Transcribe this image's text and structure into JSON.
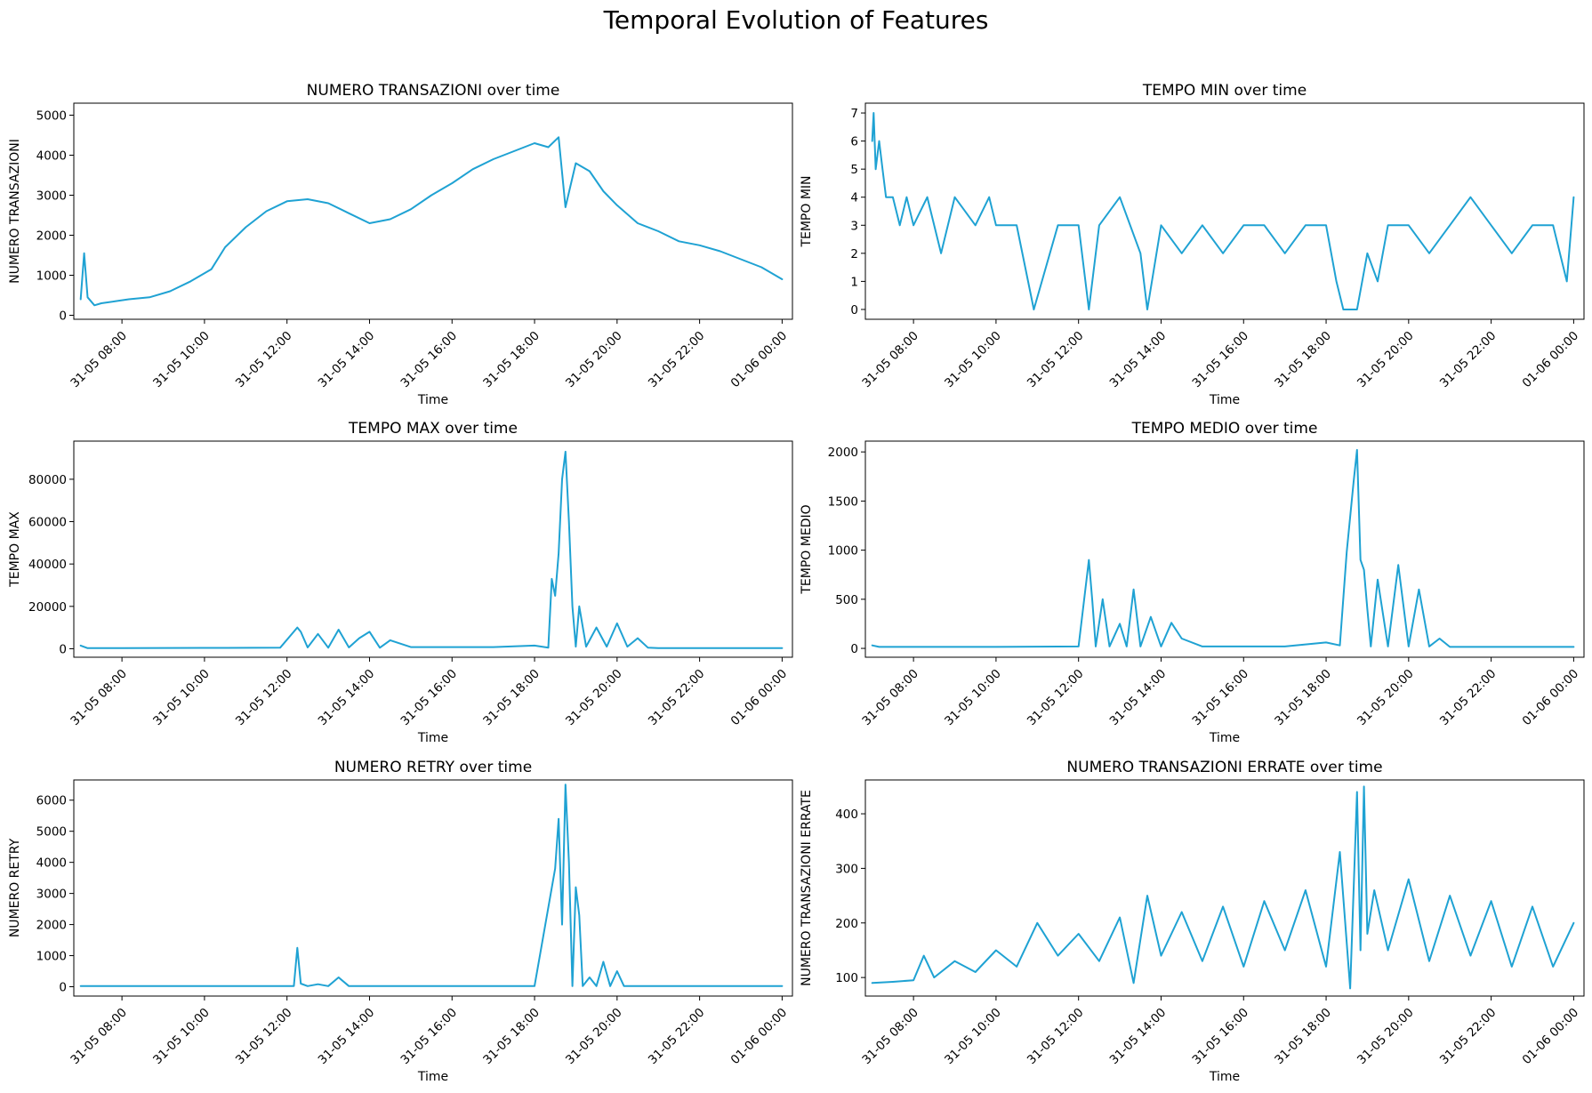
{
  "figure": {
    "title": "Temporal Evolution of Features"
  },
  "style": {
    "line_color": "#1fa2d3"
  },
  "chart_data": [
    {
      "type": "line",
      "title": "NUMERO TRANSAZIONI over time",
      "xlabel": "Time",
      "ylabel": "NUMERO TRANSAZIONI",
      "xlim": [
        "31-05 06:50",
        "01-06 00:15"
      ],
      "ylim": [
        -100,
        5300
      ],
      "x_ticks": [
        "31-05 08:00",
        "31-05 10:00",
        "31-05 12:00",
        "31-05 14:00",
        "31-05 16:00",
        "31-05 18:00",
        "31-05 20:00",
        "31-05 22:00",
        "01-06 00:00"
      ],
      "y_ticks": [
        "0",
        "1000",
        "2000",
        "3000",
        "4000",
        "5000"
      ],
      "y_tick_values": [
        0,
        1000,
        2000,
        3000,
        4000,
        5000
      ],
      "grid": false,
      "series": [
        {
          "x": [
            "31-05 07:00",
            "31-05 07:05",
            "31-05 07:10",
            "31-05 07:20",
            "31-05 07:30",
            "31-05 07:50",
            "31-05 08:10",
            "31-05 08:40",
            "31-05 09:10",
            "31-05 09:40",
            "31-05 10:10",
            "31-05 10:30",
            "31-05 11:00",
            "31-05 11:30",
            "31-05 12:00",
            "31-05 12:30",
            "31-05 13:00",
            "31-05 13:30",
            "31-05 14:00",
            "31-05 14:30",
            "31-05 15:00",
            "31-05 15:30",
            "31-05 16:00",
            "31-05 16:30",
            "31-05 17:00",
            "31-05 17:30",
            "31-05 18:00",
            "31-05 18:20",
            "31-05 18:35",
            "31-05 18:45",
            "31-05 19:00",
            "31-05 19:20",
            "31-05 19:40",
            "31-05 20:00",
            "31-05 20:30",
            "31-05 21:00",
            "31-05 21:30",
            "31-05 22:00",
            "31-05 22:30",
            "31-05 23:00",
            "31-05 23:30",
            "01-06 00:00"
          ],
          "y": [
            400,
            1550,
            450,
            250,
            300,
            350,
            400,
            450,
            600,
            850,
            1150,
            1700,
            2200,
            2600,
            2850,
            2900,
            2800,
            2550,
            2300,
            2400,
            2650,
            3000,
            3300,
            3650,
            3900,
            4100,
            4300,
            4200,
            4450,
            2700,
            3800,
            3600,
            3100,
            2750,
            2300,
            2100,
            1850,
            1750,
            1600,
            1400,
            1200,
            900
          ]
        }
      ]
    },
    {
      "type": "line",
      "title": "TEMPO MIN over time",
      "xlabel": "Time",
      "ylabel": "TEMPO MIN",
      "xlim": [
        "31-05 06:50",
        "01-06 00:15"
      ],
      "ylim": [
        -0.35,
        7.35
      ],
      "x_ticks": [
        "31-05 08:00",
        "31-05 10:00",
        "31-05 12:00",
        "31-05 14:00",
        "31-05 16:00",
        "31-05 18:00",
        "31-05 20:00",
        "31-05 22:00",
        "01-06 00:00"
      ],
      "y_ticks": [
        "0",
        "1",
        "2",
        "3",
        "4",
        "5",
        "6",
        "7"
      ],
      "y_tick_values": [
        0,
        1,
        2,
        3,
        4,
        5,
        6,
        7
      ],
      "grid": false,
      "series": [
        {
          "x": [
            "31-05 07:00",
            "31-05 07:02",
            "31-05 07:05",
            "31-05 07:10",
            "31-05 07:15",
            "31-05 07:20",
            "31-05 07:30",
            "31-05 07:40",
            "31-05 07:50",
            "31-05 08:00",
            "31-05 08:20",
            "31-05 08:40",
            "31-05 09:00",
            "31-05 09:30",
            "31-05 09:50",
            "31-05 10:00",
            "31-05 10:30",
            "31-05 10:55",
            "31-05 11:30",
            "31-05 12:00",
            "31-05 12:15",
            "31-05 12:30",
            "31-05 13:00",
            "31-05 13:30",
            "31-05 13:40",
            "31-05 14:00",
            "31-05 14:30",
            "31-05 15:00",
            "31-05 15:30",
            "31-05 16:00",
            "31-05 16:30",
            "31-05 17:00",
            "31-05 17:30",
            "31-05 18:00",
            "31-05 18:15",
            "31-05 18:25",
            "31-05 18:45",
            "31-05 19:00",
            "31-05 19:15",
            "31-05 19:30",
            "31-05 20:00",
            "31-05 20:30",
            "31-05 21:00",
            "31-05 21:30",
            "31-05 22:00",
            "31-05 22:30",
            "31-05 23:00",
            "31-05 23:30",
            "31-05 23:50",
            "01-06 00:00"
          ],
          "y": [
            6,
            7,
            5,
            6,
            5,
            4,
            4,
            3,
            4,
            3,
            4,
            2,
            4,
            3,
            4,
            3,
            3,
            0,
            3,
            3,
            0,
            3,
            4,
            2,
            0,
            3,
            2,
            3,
            2,
            3,
            3,
            2,
            3,
            3,
            1,
            0,
            0,
            2,
            1,
            3,
            3,
            2,
            3,
            4,
            3,
            2,
            3,
            3,
            1,
            4
          ]
        }
      ]
    },
    {
      "type": "line",
      "title": "TEMPO MAX over time",
      "xlabel": "Time",
      "ylabel": "TEMPO MAX",
      "xlim": [
        "31-05 06:50",
        "01-06 00:15"
      ],
      "ylim": [
        -4000,
        98000
      ],
      "x_ticks": [
        "31-05 08:00",
        "31-05 10:00",
        "31-05 12:00",
        "31-05 14:00",
        "31-05 16:00",
        "31-05 18:00",
        "31-05 20:00",
        "31-05 22:00",
        "01-06 00:00"
      ],
      "y_ticks": [
        "0",
        "20000",
        "40000",
        "60000",
        "80000"
      ],
      "y_tick_values": [
        0,
        20000,
        40000,
        60000,
        80000
      ],
      "grid": false,
      "series": [
        {
          "x": [
            "31-05 07:00",
            "31-05 07:10",
            "31-05 08:00",
            "31-05 10:00",
            "31-05 11:50",
            "31-05 12:15",
            "31-05 12:20",
            "31-05 12:30",
            "31-05 12:45",
            "31-05 13:00",
            "31-05 13:15",
            "31-05 13:30",
            "31-05 13:45",
            "31-05 14:00",
            "31-05 14:15",
            "31-05 14:30",
            "31-05 15:00",
            "31-05 16:00",
            "31-05 17:00",
            "31-05 18:00",
            "31-05 18:20",
            "31-05 18:25",
            "31-05 18:30",
            "31-05 18:35",
            "31-05 18:40",
            "31-05 18:45",
            "31-05 18:50",
            "31-05 18:55",
            "31-05 19:00",
            "31-05 19:05",
            "31-05 19:15",
            "31-05 19:30",
            "31-05 19:45",
            "31-05 20:00",
            "31-05 20:15",
            "31-05 20:30",
            "31-05 20:45",
            "31-05 21:00",
            "31-05 22:00",
            "01-06 00:00"
          ],
          "y": [
            1500,
            300,
            300,
            400,
            500,
            10000,
            8000,
            600,
            7000,
            500,
            9000,
            600,
            5000,
            8000,
            500,
            4000,
            800,
            800,
            800,
            1500,
            500,
            33000,
            25000,
            45000,
            80000,
            93000,
            60000,
            20000,
            1000,
            20000,
            1000,
            10000,
            1000,
            12000,
            1000,
            5000,
            500,
            300,
            300,
            300
          ]
        }
      ]
    },
    {
      "type": "line",
      "title": "TEMPO MEDIO over time",
      "xlabel": "Time",
      "ylabel": "TEMPO MEDIO",
      "xlim": [
        "31-05 06:50",
        "01-06 00:15"
      ],
      "ylim": [
        -90,
        2110
      ],
      "x_ticks": [
        "31-05 08:00",
        "31-05 10:00",
        "31-05 12:00",
        "31-05 14:00",
        "31-05 16:00",
        "31-05 18:00",
        "31-05 20:00",
        "31-05 22:00",
        "01-06 00:00"
      ],
      "y_ticks": [
        "0",
        "500",
        "1000",
        "1500",
        "2000"
      ],
      "y_tick_values": [
        0,
        500,
        1000,
        1500,
        2000
      ],
      "grid": false,
      "series": [
        {
          "x": [
            "31-05 07:00",
            "31-05 07:10",
            "31-05 08:00",
            "31-05 10:00",
            "31-05 12:00",
            "31-05 12:15",
            "31-05 12:20",
            "31-05 12:25",
            "31-05 12:35",
            "31-05 12:45",
            "31-05 13:00",
            "31-05 13:10",
            "31-05 13:20",
            "31-05 13:30",
            "31-05 13:45",
            "31-05 14:00",
            "31-05 14:15",
            "31-05 14:30",
            "31-05 15:00",
            "31-05 16:00",
            "31-05 17:00",
            "31-05 18:00",
            "31-05 18:20",
            "31-05 18:30",
            "31-05 18:40",
            "31-05 18:45",
            "31-05 18:50",
            "31-05 18:55",
            "31-05 19:00",
            "31-05 19:05",
            "31-05 19:15",
            "31-05 19:30",
            "31-05 19:45",
            "31-05 20:00",
            "31-05 20:15",
            "31-05 20:30",
            "31-05 20:45",
            "31-05 21:00",
            "31-05 22:00",
            "01-06 00:00"
          ],
          "y": [
            30,
            15,
            15,
            15,
            20,
            900,
            480,
            20,
            500,
            20,
            250,
            20,
            600,
            20,
            320,
            20,
            260,
            100,
            20,
            20,
            20,
            60,
            30,
            980,
            1700,
            2020,
            900,
            800,
            400,
            20,
            700,
            20,
            850,
            20,
            600,
            20,
            100,
            15,
            15,
            15
          ]
        }
      ]
    },
    {
      "type": "line",
      "title": "NUMERO RETRY over time",
      "xlabel": "Time",
      "ylabel": "NUMERO RETRY",
      "xlim": [
        "31-05 06:50",
        "01-06 00:15"
      ],
      "ylim": [
        -300,
        6650
      ],
      "x_ticks": [
        "31-05 08:00",
        "31-05 10:00",
        "31-05 12:00",
        "31-05 14:00",
        "31-05 16:00",
        "31-05 18:00",
        "31-05 20:00",
        "31-05 22:00",
        "01-06 00:00"
      ],
      "y_ticks": [
        "0",
        "1000",
        "2000",
        "3000",
        "4000",
        "5000",
        "6000"
      ],
      "y_tick_values": [
        0,
        1000,
        2000,
        3000,
        4000,
        5000,
        6000
      ],
      "grid": false,
      "series": [
        {
          "x": [
            "31-05 07:00",
            "31-05 08:00",
            "31-05 10:00",
            "31-05 12:10",
            "31-05 12:15",
            "31-05 12:20",
            "31-05 12:30",
            "31-05 12:45",
            "31-05 13:00",
            "31-05 13:15",
            "31-05 13:30",
            "31-05 14:00",
            "31-05 16:00",
            "31-05 18:00",
            "31-05 18:30",
            "31-05 18:35",
            "31-05 18:40",
            "31-05 18:45",
            "31-05 18:50",
            "31-05 18:55",
            "31-05 19:00",
            "31-05 19:05",
            "31-05 19:10",
            "31-05 19:20",
            "31-05 19:30",
            "31-05 19:40",
            "31-05 19:50",
            "31-05 20:00",
            "31-05 20:10",
            "31-05 21:00",
            "31-05 22:00",
            "01-06 00:00"
          ],
          "y": [
            20,
            20,
            20,
            20,
            1250,
            100,
            20,
            80,
            20,
            300,
            20,
            20,
            20,
            20,
            3800,
            5400,
            2000,
            6500,
            4000,
            20,
            3200,
            2300,
            20,
            300,
            20,
            800,
            20,
            500,
            20,
            20,
            20,
            20
          ]
        }
      ]
    },
    {
      "type": "line",
      "title": "NUMERO  TRANSAZIONI ERRATE over time",
      "xlabel": "Time",
      "ylabel": "NUMERO  TRANSAZIONI ERRATE",
      "xlim": [
        "31-05 06:50",
        "01-06 00:15"
      ],
      "ylim": [
        66,
        462
      ],
      "x_ticks": [
        "31-05 08:00",
        "31-05 10:00",
        "31-05 12:00",
        "31-05 14:00",
        "31-05 16:00",
        "31-05 18:00",
        "31-05 20:00",
        "31-05 22:00",
        "01-06 00:00"
      ],
      "y_ticks": [
        "100",
        "200",
        "300",
        "400"
      ],
      "y_tick_values": [
        100,
        200,
        300,
        400
      ],
      "grid": false,
      "series": [
        {
          "x": [
            "31-05 07:00",
            "31-05 07:30",
            "31-05 08:00",
            "31-05 08:15",
            "31-05 08:30",
            "31-05 09:00",
            "31-05 09:30",
            "31-05 10:00",
            "31-05 10:30",
            "31-05 11:00",
            "31-05 11:30",
            "31-05 12:00",
            "31-05 12:30",
            "31-05 13:00",
            "31-05 13:20",
            "31-05 13:40",
            "31-05 14:00",
            "31-05 14:30",
            "31-05 15:00",
            "31-05 15:30",
            "31-05 16:00",
            "31-05 16:30",
            "31-05 17:00",
            "31-05 17:30",
            "31-05 18:00",
            "31-05 18:20",
            "31-05 18:35",
            "31-05 18:45",
            "31-05 18:50",
            "31-05 18:55",
            "31-05 19:00",
            "31-05 19:10",
            "31-05 19:30",
            "31-05 20:00",
            "31-05 20:30",
            "31-05 21:00",
            "31-05 21:30",
            "31-05 22:00",
            "31-05 22:30",
            "31-05 23:00",
            "31-05 23:30",
            "01-06 00:00"
          ],
          "y": [
            90,
            92,
            95,
            140,
            100,
            130,
            110,
            150,
            120,
            200,
            140,
            180,
            130,
            210,
            90,
            250,
            140,
            220,
            130,
            230,
            120,
            240,
            150,
            260,
            120,
            330,
            80,
            440,
            150,
            450,
            180,
            260,
            150,
            280,
            130,
            250,
            140,
            240,
            120,
            230,
            120,
            200
          ]
        }
      ]
    }
  ]
}
